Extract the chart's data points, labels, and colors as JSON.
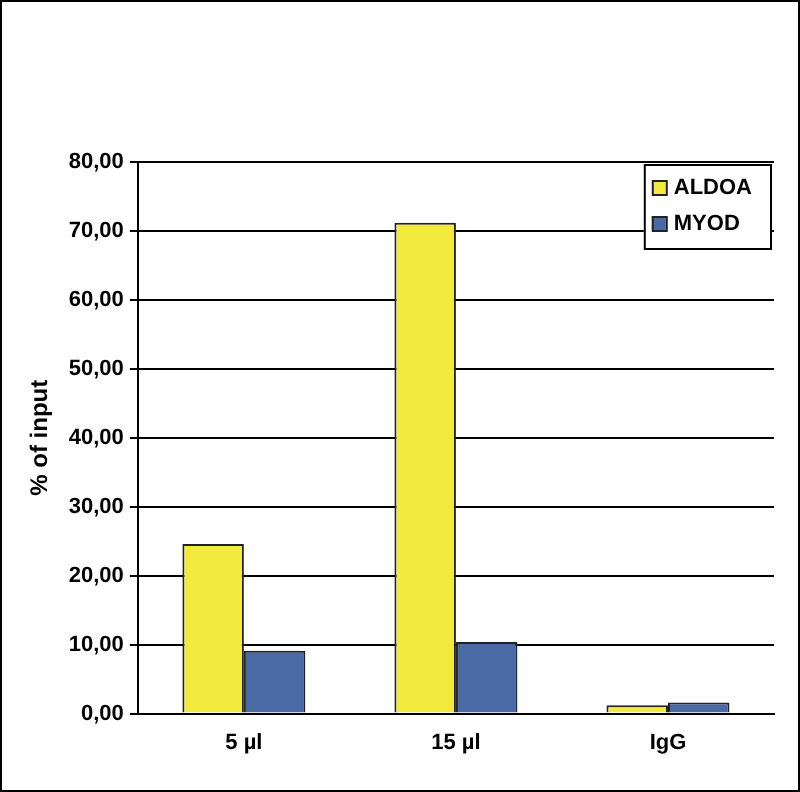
{
  "chart_data": {
    "type": "bar",
    "ylabel": "% of input",
    "categories": [
      "5 µl",
      "15 µl",
      "IgG"
    ],
    "series": [
      {
        "name": "ALDOA",
        "color": "#f2ea3c",
        "values": [
          24.6,
          71.2,
          1.2
        ]
      },
      {
        "name": "MYOD",
        "color": "#4a6aa5",
        "values": [
          9.1,
          10.4,
          1.6
        ]
      }
    ],
    "ylim": [
      0,
      80
    ],
    "yticks": [
      {
        "value": 0,
        "label": "0,00"
      },
      {
        "value": 10,
        "label": "10,00"
      },
      {
        "value": 20,
        "label": "20,00"
      },
      {
        "value": 30,
        "label": "30,00"
      },
      {
        "value": 40,
        "label": "40,00"
      },
      {
        "value": 50,
        "label": "50,00"
      },
      {
        "value": 60,
        "label": "60,00"
      },
      {
        "value": 70,
        "label": "70,00"
      },
      {
        "value": 80,
        "label": "80,00"
      }
    ],
    "grid": "y",
    "legend": "top right"
  }
}
